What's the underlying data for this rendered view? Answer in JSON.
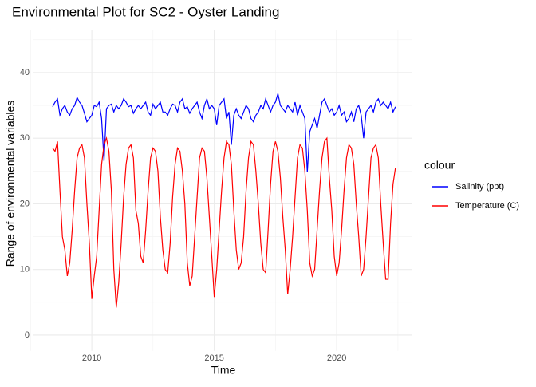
{
  "chart_data": {
    "type": "line",
    "title": "Environmental Plot for SC2 - Oyster Landing",
    "x_label": "Time",
    "y_label": "Range of environmental variables",
    "legend_title": "colour",
    "legend_position": "right",
    "grid": true,
    "xlim": [
      2007.62,
      2023.09
    ],
    "ylim": [
      -2.4,
      46.5
    ],
    "xticks": [
      2010,
      2015,
      2020
    ],
    "yticks": [
      0,
      10,
      20,
      30,
      40
    ],
    "x_minor_grid": [
      2007.5,
      2012.5,
      2017.5,
      2022.5
    ],
    "y_minor_grid": [
      5,
      15,
      25,
      35,
      45
    ],
    "x": [
      2008.4,
      2008.5,
      2008.6,
      2008.7,
      2008.8,
      2008.9,
      2009.0,
      2009.1,
      2009.2,
      2009.3,
      2009.4,
      2009.5,
      2009.6,
      2009.7,
      2009.8,
      2009.9,
      2010.0,
      2010.1,
      2010.2,
      2010.3,
      2010.4,
      2010.5,
      2010.6,
      2010.7,
      2010.8,
      2010.9,
      2011.0,
      2011.1,
      2011.2,
      2011.3,
      2011.4,
      2011.5,
      2011.6,
      2011.7,
      2011.8,
      2011.9,
      2012.0,
      2012.1,
      2012.2,
      2012.3,
      2012.4,
      2012.5,
      2012.6,
      2012.7,
      2012.8,
      2012.9,
      2013.0,
      2013.1,
      2013.2,
      2013.3,
      2013.4,
      2013.5,
      2013.6,
      2013.7,
      2013.8,
      2013.9,
      2014.0,
      2014.1,
      2014.2,
      2014.3,
      2014.4,
      2014.5,
      2014.6,
      2014.7,
      2014.8,
      2014.9,
      2015.0,
      2015.1,
      2015.2,
      2015.3,
      2015.4,
      2015.5,
      2015.6,
      2015.7,
      2015.8,
      2015.9,
      2016.0,
      2016.1,
      2016.2,
      2016.3,
      2016.4,
      2016.5,
      2016.6,
      2016.7,
      2016.8,
      2016.9,
      2017.0,
      2017.1,
      2017.2,
      2017.3,
      2017.4,
      2017.5,
      2017.6,
      2017.7,
      2017.8,
      2017.9,
      2018.0,
      2018.1,
      2018.2,
      2018.3,
      2018.4,
      2018.5,
      2018.6,
      2018.7,
      2018.8,
      2018.9,
      2019.0,
      2019.1,
      2019.2,
      2019.3,
      2019.4,
      2019.5,
      2019.6,
      2019.7,
      2019.8,
      2019.9,
      2020.0,
      2020.1,
      2020.2,
      2020.3,
      2020.4,
      2020.5,
      2020.6,
      2020.7,
      2020.8,
      2020.9,
      2021.0,
      2021.1,
      2021.2,
      2021.3,
      2021.4,
      2021.5,
      2021.6,
      2021.7,
      2021.8,
      2021.9,
      2022.0,
      2022.1,
      2022.2,
      2022.3,
      2022.4
    ],
    "series": [
      {
        "name": "Salinity (ppt)",
        "color": "#0000ff",
        "values": [
          34.8,
          35.5,
          36,
          33.5,
          34.5,
          35,
          34,
          33.5,
          34.5,
          35,
          36.2,
          35.5,
          35,
          33.8,
          32.5,
          33,
          33.5,
          35,
          34.8,
          35.5,
          33,
          26.5,
          34.5,
          35,
          35.2,
          34,
          35,
          34.5,
          35,
          36,
          35.5,
          34.8,
          35,
          33.8,
          34.5,
          35,
          34.5,
          35,
          35.5,
          34,
          33.5,
          35.2,
          34.5,
          35,
          35.5,
          34,
          34,
          33.5,
          34.5,
          35.2,
          35,
          34,
          35.5,
          36,
          34.5,
          34.8,
          33.8,
          34.5,
          35,
          35.5,
          34,
          33,
          35,
          36,
          34.5,
          35,
          34.5,
          32,
          35,
          35.5,
          36,
          33,
          34,
          29,
          33.5,
          34.5,
          33.5,
          33,
          34,
          35,
          34.5,
          33,
          32.5,
          33.5,
          34,
          35,
          34.5,
          36,
          35,
          34,
          35,
          35.5,
          36.8,
          35,
          34.5,
          34,
          35,
          34.5,
          34,
          35.5,
          33.5,
          35,
          34,
          33,
          24.8,
          31,
          32,
          33,
          31.5,
          33.5,
          35.5,
          36,
          35,
          34,
          34.5,
          33.5,
          34,
          35,
          33.5,
          34,
          32.5,
          33,
          34,
          32.5,
          34.5,
          35,
          33.5,
          30,
          34,
          34.5,
          35,
          34,
          35.5,
          36,
          35,
          35.5,
          35,
          34.5,
          35.5,
          34,
          34.8
        ]
      },
      {
        "name": "Temperature (C)",
        "color": "#ff0000",
        "values": [
          28.5,
          28,
          29.5,
          22,
          15,
          13,
          9,
          11,
          16,
          22,
          27,
          28.5,
          29,
          27,
          20,
          14,
          5.5,
          9,
          12,
          19,
          26,
          29,
          30,
          28,
          22,
          10,
          4.2,
          8,
          14,
          21,
          26,
          28.5,
          29,
          27,
          19,
          17,
          12,
          11,
          16,
          22,
          27,
          28.5,
          28,
          25,
          18,
          13,
          10,
          9.5,
          14,
          21,
          26,
          28.5,
          28,
          25,
          20,
          11,
          7.5,
          9,
          15,
          21,
          27,
          28.5,
          28,
          24,
          18,
          12,
          5.8,
          10,
          16,
          22,
          27,
          29.5,
          29,
          26,
          19,
          13,
          10,
          11,
          15,
          22,
          27,
          29.5,
          29,
          25,
          20,
          14,
          10,
          9.5,
          16,
          23,
          28,
          29.5,
          28,
          24,
          18,
          13,
          6.2,
          10,
          15,
          21,
          27,
          29,
          28.5,
          25,
          19,
          11,
          9,
          10,
          16,
          22,
          27,
          29.5,
          30,
          24,
          19,
          12,
          9,
          11,
          16,
          22,
          27,
          29,
          28.5,
          26,
          20,
          15,
          9,
          10,
          15,
          21,
          27,
          28.5,
          29,
          27,
          20,
          14,
          8.5,
          8.5,
          17,
          23,
          25.5
        ]
      }
    ]
  }
}
